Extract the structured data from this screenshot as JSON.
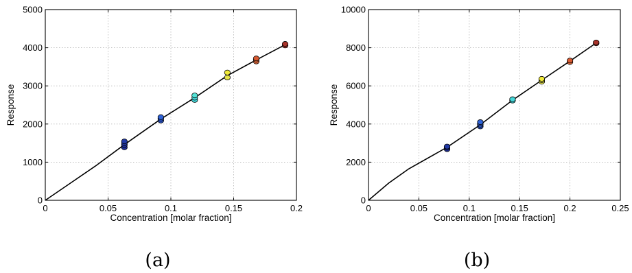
{
  "chart_data": [
    {
      "panel_label": "(a)",
      "type": "scatter",
      "xlabel": "Concentration [molar fraction]",
      "ylabel": "Response",
      "xlim": [
        0,
        0.2
      ],
      "ylim": [
        0,
        5000
      ],
      "xticks": [
        0,
        0.05,
        0.1,
        0.15,
        0.2
      ],
      "xtick_labels": [
        "0",
        "0.05",
        "0.1",
        "0.15",
        "0.2"
      ],
      "yticks": [
        0,
        1000,
        2000,
        3000,
        4000,
        5000
      ],
      "ytick_labels": [
        "0",
        "1000",
        "2000",
        "3000",
        "4000",
        "5000"
      ],
      "grid": true,
      "series": [
        {
          "type": "scatter",
          "points": [
            {
              "x": 0.063,
              "y": 1390,
              "color": "#1f2f9a"
            },
            {
              "x": 0.063,
              "y": 1450,
              "color": "#1f2f9a"
            },
            {
              "x": 0.063,
              "y": 1500,
              "color": "#233aa6"
            },
            {
              "x": 0.063,
              "y": 1545,
              "color": "#233aa6"
            },
            {
              "x": 0.092,
              "y": 2090,
              "color": "#2a55c8"
            },
            {
              "x": 0.092,
              "y": 2140,
              "color": "#2a55c8"
            },
            {
              "x": 0.092,
              "y": 2180,
              "color": "#2f63d9"
            },
            {
              "x": 0.119,
              "y": 2630,
              "color": "#45d7d9"
            },
            {
              "x": 0.119,
              "y": 2690,
              "color": "#45d7d9"
            },
            {
              "x": 0.119,
              "y": 2750,
              "color": "#55e3d6"
            },
            {
              "x": 0.145,
              "y": 3220,
              "color": "#e6e44a"
            },
            {
              "x": 0.145,
              "y": 3350,
              "color": "#f0ea3a"
            },
            {
              "x": 0.168,
              "y": 3640,
              "color": "#e26a3a"
            },
            {
              "x": 0.168,
              "y": 3690,
              "color": "#e26a3a"
            },
            {
              "x": 0.168,
              "y": 3720,
              "color": "#d85a32"
            },
            {
              "x": 0.191,
              "y": 4060,
              "color": "#a8332a"
            },
            {
              "x": 0.191,
              "y": 4100,
              "color": "#a8332a"
            }
          ]
        },
        {
          "type": "line",
          "x": [
            0,
            0.02,
            0.04,
            0.063,
            0.092,
            0.119,
            0.145,
            0.168,
            0.191
          ],
          "y": [
            0,
            450,
            900,
            1460,
            2130,
            2690,
            3270,
            3680,
            4080
          ]
        }
      ]
    },
    {
      "panel_label": "(b)",
      "type": "scatter",
      "xlabel": "Concentration [molar fraction]",
      "ylabel": "Response",
      "xlim": [
        0,
        0.25
      ],
      "ylim": [
        0,
        10000
      ],
      "xticks": [
        0,
        0.05,
        0.1,
        0.15,
        0.2,
        0.25
      ],
      "xtick_labels": [
        "0",
        "0.05",
        "0.1",
        "0.15",
        "0.2",
        "0.25"
      ],
      "yticks": [
        0,
        2000,
        4000,
        6000,
        8000,
        10000
      ],
      "ytick_labels": [
        "0",
        "2000",
        "4000",
        "6000",
        "8000",
        "10000"
      ],
      "grid": true,
      "series": [
        {
          "type": "scatter",
          "points": [
            {
              "x": 0.078,
              "y": 2680,
              "color": "#1f2f9a"
            },
            {
              "x": 0.078,
              "y": 2760,
              "color": "#1f2f9a"
            },
            {
              "x": 0.078,
              "y": 2820,
              "color": "#233aa6"
            },
            {
              "x": 0.111,
              "y": 3870,
              "color": "#2a55c8"
            },
            {
              "x": 0.111,
              "y": 3960,
              "color": "#2a55c8"
            },
            {
              "x": 0.111,
              "y": 4030,
              "color": "#2f63d9"
            },
            {
              "x": 0.111,
              "y": 4100,
              "color": "#2f63d9"
            },
            {
              "x": 0.143,
              "y": 5230,
              "color": "#45d7d9"
            },
            {
              "x": 0.143,
              "y": 5300,
              "color": "#45d7d9"
            },
            {
              "x": 0.172,
              "y": 6220,
              "color": "#e6e44a"
            },
            {
              "x": 0.172,
              "y": 6300,
              "color": "#e6e44a"
            },
            {
              "x": 0.172,
              "y": 6370,
              "color": "#f0ea3a"
            },
            {
              "x": 0.2,
              "y": 7250,
              "color": "#e26a3a"
            },
            {
              "x": 0.2,
              "y": 7330,
              "color": "#d85a32"
            },
            {
              "x": 0.226,
              "y": 8230,
              "color": "#a8332a"
            },
            {
              "x": 0.226,
              "y": 8280,
              "color": "#a8332a"
            }
          ]
        },
        {
          "type": "line",
          "x": [
            0,
            0.02,
            0.04,
            0.078,
            0.111,
            0.143,
            0.172,
            0.2,
            0.226
          ],
          "y": [
            0,
            900,
            1650,
            2780,
            3960,
            5250,
            6300,
            7300,
            8250
          ]
        }
      ]
    }
  ]
}
